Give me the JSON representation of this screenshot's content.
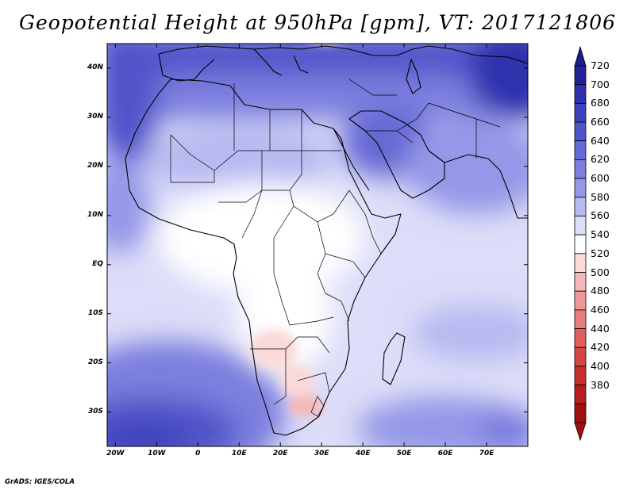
{
  "title": "Geopotential Height at 950hPa [gpm], VT: 2017121806",
  "footer": "GrADS: IGES/COLA",
  "map": {
    "lon_range": [
      -22,
      80
    ],
    "lat_range": [
      -37,
      45
    ],
    "lat_ticks": [
      {
        "value": 40,
        "label": "40N"
      },
      {
        "value": 30,
        "label": "30N"
      },
      {
        "value": 20,
        "label": "20N"
      },
      {
        "value": 10,
        "label": "10N"
      },
      {
        "value": 0,
        "label": "EQ"
      },
      {
        "value": -10,
        "label": "10S"
      },
      {
        "value": -20,
        "label": "20S"
      },
      {
        "value": -30,
        "label": "30S"
      }
    ],
    "lon_ticks": [
      {
        "value": -20,
        "label": "20W"
      },
      {
        "value": -10,
        "label": "10W"
      },
      {
        "value": 0,
        "label": "0"
      },
      {
        "value": 10,
        "label": "10E"
      },
      {
        "value": 20,
        "label": "20E"
      },
      {
        "value": 30,
        "label": "30E"
      },
      {
        "value": 40,
        "label": "40E"
      },
      {
        "value": 50,
        "label": "50E"
      },
      {
        "value": 60,
        "label": "60E"
      },
      {
        "value": 70,
        "label": "70E"
      }
    ]
  },
  "colorbar": {
    "levels": [
      "720",
      "700",
      "680",
      "660",
      "640",
      "620",
      "600",
      "580",
      "560",
      "540",
      "520",
      "500",
      "480",
      "460",
      "440",
      "420",
      "400",
      "380"
    ],
    "colors": [
      "#21229a",
      "#2e30ad",
      "#3f42bd",
      "#5154c9",
      "#6669d4",
      "#7c7fde",
      "#9598e8",
      "#b7b9f1",
      "#dcddf8",
      "#ffffff",
      "#fbd9d9",
      "#f5b8b8",
      "#f09898",
      "#e87b7b",
      "#e05e5e",
      "#d64444",
      "#c92e2e",
      "#b81d1d",
      "#a01010"
    ],
    "top_arrow_color": "#1c1d8c",
    "bottom_arrow_color": "#a01010"
  }
}
